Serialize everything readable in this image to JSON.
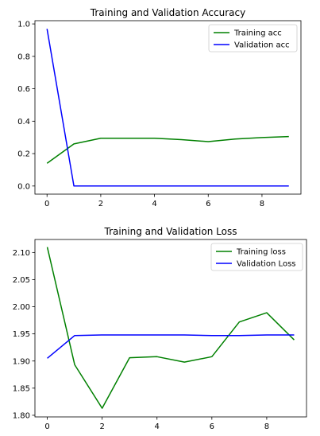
{
  "chart_data": [
    {
      "type": "line",
      "title": "Training and Validation Accuracy",
      "xlabel": "",
      "ylabel": "",
      "xlim": [
        -0.45,
        9.45
      ],
      "ylim": [
        -0.05,
        1.02
      ],
      "xticks": [
        0,
        2,
        4,
        6,
        8
      ],
      "yticks": [
        0.0,
        0.2,
        0.4,
        0.6,
        0.8,
        1.0
      ],
      "ytick_labels": [
        "0.0",
        "0.2",
        "0.4",
        "0.6",
        "0.8",
        "1.0"
      ],
      "grid": false,
      "legend_position": "top-right",
      "x": [
        0,
        1,
        2,
        3,
        4,
        5,
        6,
        7,
        8,
        9
      ],
      "series": [
        {
          "name": "Training acc",
          "color": "#008000",
          "values": [
            0.14,
            0.26,
            0.295,
            0.295,
            0.295,
            0.286,
            0.274,
            0.29,
            0.299,
            0.305
          ]
        },
        {
          "name": "Validation acc",
          "color": "#0000ff",
          "values": [
            0.97,
            0.0,
            0.0,
            0.0,
            0.0,
            0.0,
            0.0,
            0.0,
            0.0,
            0.0
          ]
        }
      ]
    },
    {
      "type": "line",
      "title": "Training and Validation Loss",
      "xlabel": "",
      "ylabel": "",
      "xlim": [
        -0.45,
        9.45
      ],
      "ylim": [
        1.797,
        2.124
      ],
      "xticks": [
        0,
        2,
        4,
        6,
        8
      ],
      "yticks": [
        1.8,
        1.85,
        1.9,
        1.95,
        2.0,
        2.05,
        2.1
      ],
      "ytick_labels": [
        "1.80",
        "1.85",
        "1.90",
        "1.95",
        "2.00",
        "2.05",
        "2.10"
      ],
      "grid": false,
      "legend_position": "top-right",
      "x": [
        0,
        1,
        2,
        3,
        4,
        5,
        6,
        7,
        8,
        9
      ],
      "series": [
        {
          "name": "Training loss",
          "color": "#008000",
          "values": [
            2.11,
            1.893,
            1.813,
            1.906,
            1.908,
            1.898,
            1.908,
            1.972,
            1.989,
            1.939
          ]
        },
        {
          "name": "Validation Loss",
          "color": "#0000ff",
          "values": [
            1.905,
            1.947,
            1.948,
            1.948,
            1.948,
            1.948,
            1.947,
            1.947,
            1.948,
            1.948
          ]
        }
      ]
    }
  ]
}
